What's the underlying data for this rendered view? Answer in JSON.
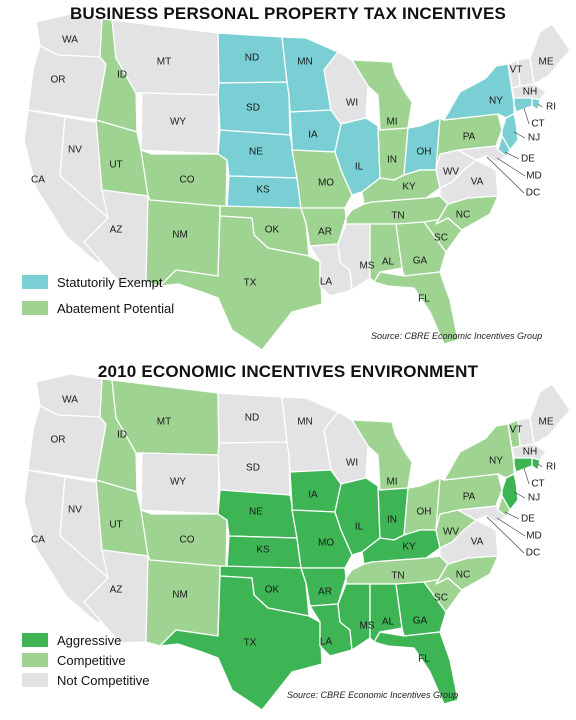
{
  "colors": {
    "exempt": "#79cfd4",
    "abatement": "#9fd391",
    "aggressive": "#3eb555",
    "competitive": "#9fd391",
    "none": "#e3e3e5"
  },
  "map1": {
    "title": "BUSINESS PERSONAL PROPERTY TAX INCENTIVES",
    "legend": [
      {
        "key": "exempt",
        "label": "Statutorily Exempt"
      },
      {
        "key": "abatement",
        "label": "Abatement Potential"
      }
    ],
    "source": "Source: CBRE Economic Incentives Group",
    "states": {
      "WA": "none",
      "OR": "none",
      "CA": "none",
      "NV": "none",
      "ID": "abatement",
      "MT": "none",
      "WY": "none",
      "UT": "abatement",
      "AZ": "none",
      "CO": "abatement",
      "NM": "abatement",
      "ND": "exempt",
      "SD": "exempt",
      "NE": "exempt",
      "KS": "exempt",
      "OK": "abatement",
      "TX": "abatement",
      "MN": "exempt",
      "IA": "exempt",
      "MO": "abatement",
      "AR": "abatement",
      "LA": "none",
      "WI": "none",
      "IL": "exempt",
      "MI": "abatement",
      "IN": "abatement",
      "OH": "exempt",
      "KY": "abatement",
      "TN": "abatement",
      "MS": "none",
      "AL": "abatement",
      "GA": "abatement",
      "FL": "abatement",
      "SC": "abatement",
      "NC": "abatement",
      "VA": "none",
      "WV": "none",
      "PA": "abatement",
      "NY": "exempt",
      "VT": "none",
      "NH": "none",
      "ME": "none",
      "MA": "none",
      "RI": "exempt",
      "CT": "exempt",
      "NJ": "exempt",
      "DE": "exempt",
      "MD": "none"
    }
  },
  "map2": {
    "title": "2010 ECONOMIC INCENTIVES ENVIRONMENT",
    "legend": [
      {
        "key": "aggressive",
        "label": "Aggressive"
      },
      {
        "key": "competitive",
        "label": "Competitive"
      },
      {
        "key": "none",
        "label": "Not Competitive"
      }
    ],
    "source": "Source: CBRE Economic Incentives Group",
    "states": {
      "WA": "none",
      "OR": "none",
      "CA": "none",
      "NV": "none",
      "ID": "competitive",
      "MT": "competitive",
      "WY": "none",
      "UT": "competitive",
      "AZ": "none",
      "CO": "competitive",
      "NM": "competitive",
      "ND": "none",
      "SD": "none",
      "NE": "aggressive",
      "KS": "aggressive",
      "OK": "aggressive",
      "TX": "aggressive",
      "MN": "none",
      "IA": "aggressive",
      "MO": "aggressive",
      "AR": "aggressive",
      "LA": "aggressive",
      "WI": "none",
      "IL": "aggressive",
      "MI": "competitive",
      "IN": "aggressive",
      "OH": "competitive",
      "KY": "aggressive",
      "TN": "competitive",
      "MS": "aggressive",
      "AL": "aggressive",
      "GA": "aggressive",
      "FL": "aggressive",
      "SC": "competitive",
      "NC": "competitive",
      "VA": "none",
      "WV": "competitive",
      "PA": "competitive",
      "NY": "competitive",
      "VT": "competitive",
      "NH": "none",
      "ME": "none",
      "MA": "none",
      "RI": "aggressive",
      "CT": "aggressive",
      "NJ": "aggressive",
      "DE": "competitive",
      "MD": "none"
    }
  },
  "state_labels": [
    "WA",
    "OR",
    "CA",
    "NV",
    "ID",
    "MT",
    "WY",
    "UT",
    "AZ",
    "CO",
    "NM",
    "ND",
    "SD",
    "NE",
    "KS",
    "OK",
    "TX",
    "MN",
    "IA",
    "MO",
    "AR",
    "LA",
    "WI",
    "IL",
    "MI",
    "IN",
    "OH",
    "KY",
    "TN",
    "MS",
    "AL",
    "GA",
    "FL",
    "SC",
    "NC",
    "VA",
    "WV",
    "PA",
    "NY",
    "VT",
    "NH",
    "ME",
    "MA",
    "RI",
    "CT",
    "NJ",
    "DE",
    "MD",
    "DC"
  ]
}
